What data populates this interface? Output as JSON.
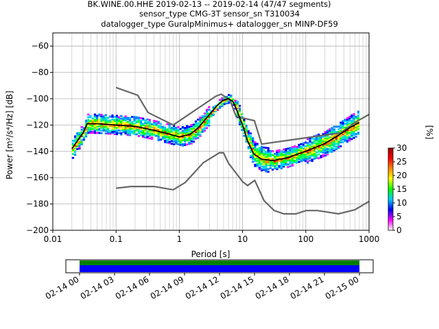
{
  "chart_data": {
    "type": "heatmap",
    "title_lines": [
      "BK.WINE.00.HHE   2019-02-13 -- 2019-02-14  (47/47 segments)",
      "sensor_type CMG-3T sensor_sn T310034",
      "datalogger_type GuralpMinimus+ datalogger_sn MINP-DF59"
    ],
    "xlabel": "Period [s]",
    "ylabel": "Power [m²/s⁴/Hz] [dB]",
    "xscale": "log",
    "xlim": [
      0.01,
      1000
    ],
    "ylim": [
      -200,
      -50
    ],
    "grid": true,
    "x_ticks": [
      {
        "v": 0.01,
        "label": "0.01"
      },
      {
        "v": 0.1,
        "label": "0.1"
      },
      {
        "v": 1,
        "label": "1"
      },
      {
        "v": 10,
        "label": "10"
      },
      {
        "v": 100,
        "label": "100"
      },
      {
        "v": 1000,
        "label": "1000"
      }
    ],
    "y_ticks": [
      {
        "v": -60,
        "label": "−60"
      },
      {
        "v": -80,
        "label": "−80"
      },
      {
        "v": -100,
        "label": "−100"
      },
      {
        "v": -120,
        "label": "−120"
      },
      {
        "v": -140,
        "label": "−140"
      },
      {
        "v": -160,
        "label": "−160"
      },
      {
        "v": -180,
        "label": "−180"
      },
      {
        "v": -200,
        "label": "−200"
      }
    ],
    "colorbar": {
      "label": "[%]",
      "range": [
        0,
        30
      ],
      "ticks": [
        "0",
        "5",
        "10",
        "15",
        "20",
        "25",
        "30"
      ],
      "colormap": [
        "#ffffff",
        "#ff00ff",
        "#0000ff",
        "#00ccff",
        "#00ff00",
        "#ffff00",
        "#ff8800",
        "#ff0000",
        "#990000"
      ]
    },
    "high_noise_model": [
      [
        0.1,
        -91.5
      ],
      [
        0.22,
        -97.4
      ],
      [
        0.32,
        -110.5
      ],
      [
        0.8,
        -120.0
      ],
      [
        3.8,
        -98.0
      ],
      [
        4.6,
        -96.5
      ],
      [
        6.3,
        -101.0
      ],
      [
        7.9,
        -113.5
      ],
      [
        15.4,
        -116.7
      ],
      [
        20.0,
        -134.5
      ],
      [
        354.8,
        -126.0
      ],
      [
        600,
        -118
      ],
      [
        1000,
        -112
      ]
    ],
    "low_noise_model": [
      [
        0.1,
        -168.0
      ],
      [
        0.17,
        -166.7
      ],
      [
        0.4,
        -166.7
      ],
      [
        0.8,
        -169.2
      ],
      [
        1.24,
        -163.7
      ],
      [
        2.4,
        -148.6
      ],
      [
        4.3,
        -141.1
      ],
      [
        5.0,
        -141.1
      ],
      [
        6.0,
        -149.0
      ],
      [
        10.0,
        -163.0
      ],
      [
        12.0,
        -166.0
      ],
      [
        15.6,
        -162.1
      ],
      [
        21.9,
        -177.5
      ],
      [
        31.6,
        -185.0
      ],
      [
        45.0,
        -187.5
      ],
      [
        70.0,
        -187.5
      ],
      [
        101.0,
        -185.0
      ],
      [
        154.0,
        -185.0
      ],
      [
        328.0,
        -187.5
      ],
      [
        600.0,
        -184.4
      ],
      [
        1000,
        -178
      ]
    ],
    "mode_curve": [
      [
        0.02,
        -138
      ],
      [
        0.03,
        -126
      ],
      [
        0.035,
        -119
      ],
      [
        0.05,
        -119
      ],
      [
        0.1,
        -120
      ],
      [
        0.2,
        -121
      ],
      [
        0.4,
        -124
      ],
      [
        0.7,
        -127
      ],
      [
        1.0,
        -129
      ],
      [
        1.5,
        -127
      ],
      [
        2.0,
        -122
      ],
      [
        3.0,
        -112
      ],
      [
        4.0,
        -105
      ],
      [
        5.0,
        -101
      ],
      [
        6.0,
        -100
      ],
      [
        7.0,
        -102
      ],
      [
        8.0,
        -108
      ],
      [
        10.0,
        -120
      ],
      [
        12.0,
        -132
      ],
      [
        15.0,
        -142
      ],
      [
        20.0,
        -146
      ],
      [
        30.0,
        -147
      ],
      [
        50.0,
        -145
      ],
      [
        100.0,
        -140
      ],
      [
        200.0,
        -134
      ],
      [
        300.0,
        -129
      ],
      [
        500.0,
        -122
      ],
      [
        700.0,
        -118
      ]
    ],
    "time_axis": {
      "tick_labels": [
        "02-14 00",
        "02-14 03",
        "02-14 06",
        "02-14 09",
        "02-14 12",
        "02-14 15",
        "02-14 18",
        "02-14 21",
        "02-15 00"
      ],
      "coverage_bar_colors": [
        "#008000",
        "#0000ff"
      ]
    }
  }
}
